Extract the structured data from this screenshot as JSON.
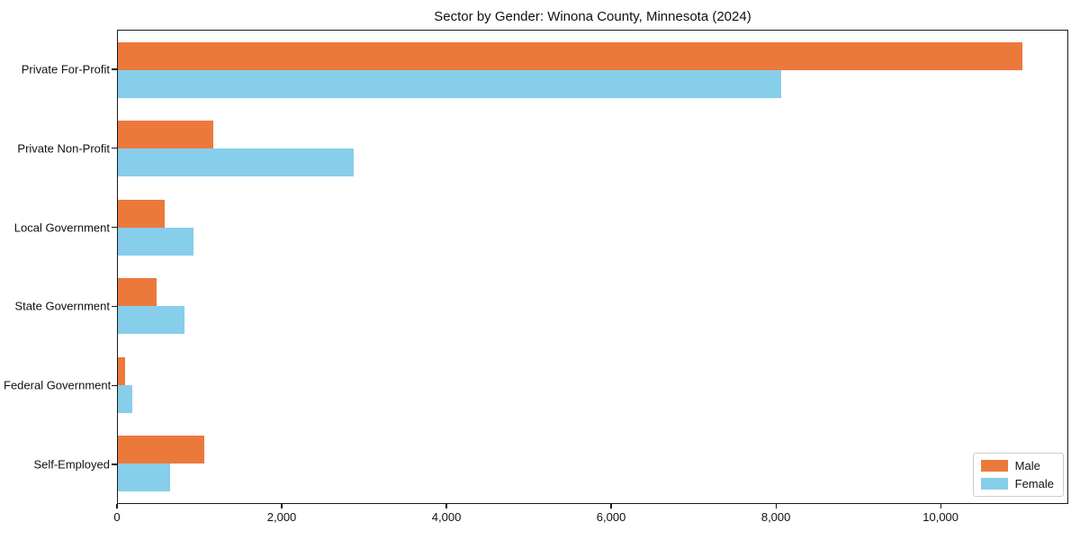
{
  "chart_data": {
    "type": "bar",
    "orientation": "horizontal",
    "title": "Sector by Gender: Winona County, Minnesota (2024)",
    "categories": [
      "Private For-Profit",
      "Private Non-Profit",
      "Local Government",
      "State Government",
      "Federal Government",
      "Self-Employed"
    ],
    "series": [
      {
        "name": "Male",
        "color": "#EC793C",
        "values": [
          11000,
          1160,
          570,
          470,
          85,
          1050
        ]
      },
      {
        "name": "Female",
        "color": "#87CEEB",
        "values": [
          8070,
          2870,
          920,
          810,
          170,
          630
        ]
      }
    ],
    "xlabel": "",
    "ylabel": "",
    "xlim": [
      0,
      11550
    ],
    "x_ticks": [
      0,
      2000,
      4000,
      6000,
      8000,
      10000
    ],
    "x_tick_labels": [
      "0",
      "2,000",
      "4,000",
      "6,000",
      "8,000",
      "10,000"
    ],
    "grid": false,
    "legend_position": "lower right"
  }
}
